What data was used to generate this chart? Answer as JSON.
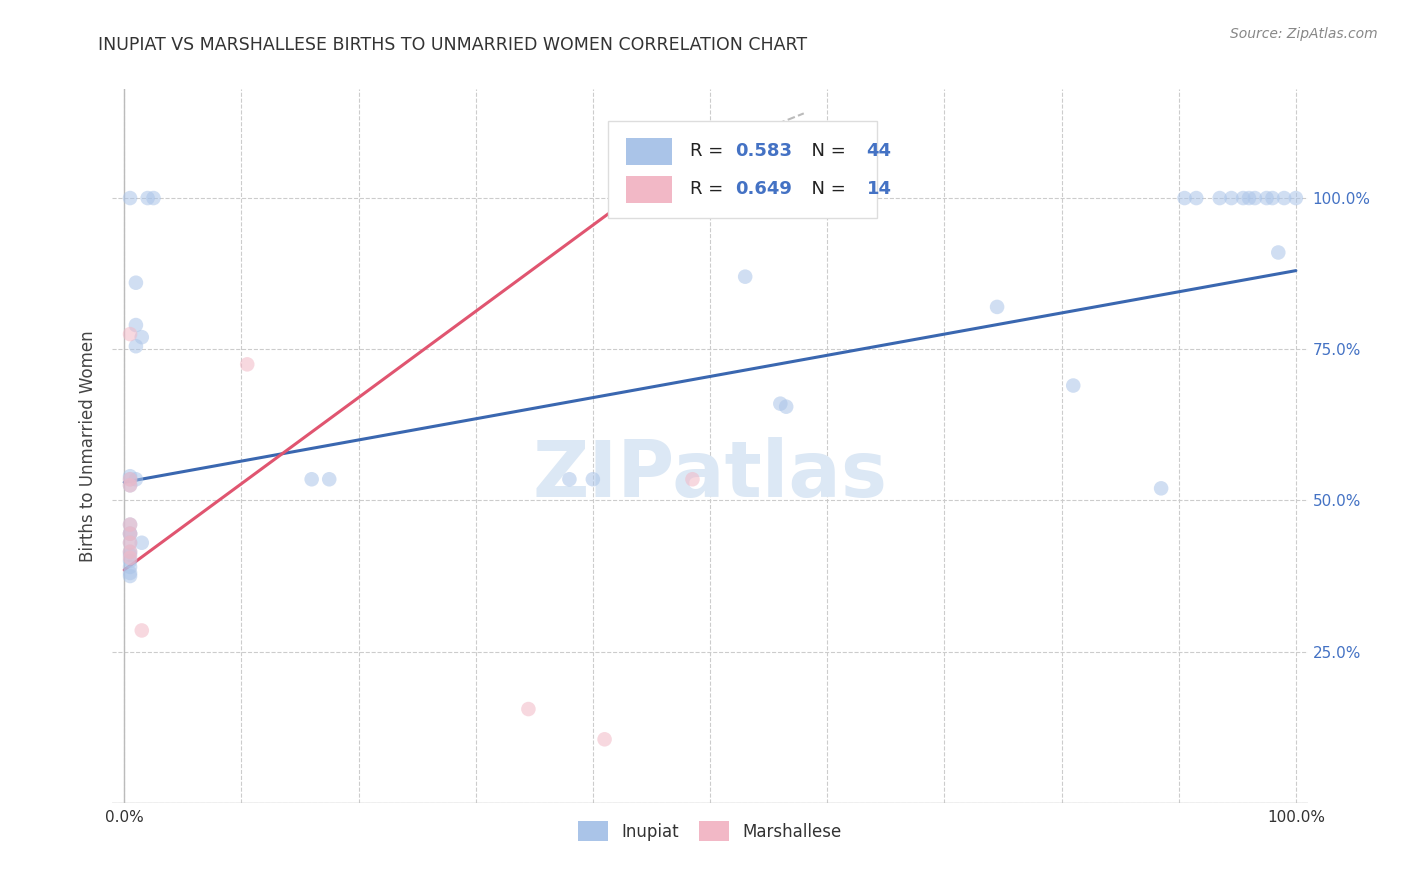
{
  "title": "INUPIAT VS MARSHALLESE BIRTHS TO UNMARRIED WOMEN CORRELATION CHART",
  "source": "Source: ZipAtlas.com",
  "ylabel": "Births to Unmarried Women",
  "watermark": "ZIPatlas",
  "inupiat_scatter": [
    [
      0.005,
      1.0
    ],
    [
      0.02,
      1.0
    ],
    [
      0.025,
      1.0
    ],
    [
      0.01,
      0.86
    ],
    [
      0.01,
      0.79
    ],
    [
      0.015,
      0.77
    ],
    [
      0.01,
      0.755
    ],
    [
      0.005,
      0.54
    ],
    [
      0.01,
      0.535
    ],
    [
      0.005,
      0.535
    ],
    [
      0.005,
      0.525
    ],
    [
      0.005,
      0.46
    ],
    [
      0.005,
      0.445
    ],
    [
      0.005,
      0.445
    ],
    [
      0.005,
      0.43
    ],
    [
      0.005,
      0.415
    ],
    [
      0.005,
      0.41
    ],
    [
      0.005,
      0.4
    ],
    [
      0.005,
      0.39
    ],
    [
      0.005,
      0.38
    ],
    [
      0.005,
      0.375
    ],
    [
      0.015,
      0.43
    ],
    [
      0.16,
      0.535
    ],
    [
      0.175,
      0.535
    ],
    [
      0.38,
      0.535
    ],
    [
      0.4,
      0.535
    ],
    [
      0.53,
      0.87
    ],
    [
      0.56,
      0.66
    ],
    [
      0.565,
      0.655
    ],
    [
      0.745,
      0.82
    ],
    [
      0.81,
      0.69
    ],
    [
      0.885,
      0.52
    ],
    [
      0.905,
      1.0
    ],
    [
      0.915,
      1.0
    ],
    [
      0.935,
      1.0
    ],
    [
      0.945,
      1.0
    ],
    [
      0.955,
      1.0
    ],
    [
      0.96,
      1.0
    ],
    [
      0.965,
      1.0
    ],
    [
      0.975,
      1.0
    ],
    [
      0.98,
      1.0
    ],
    [
      0.985,
      0.91
    ],
    [
      0.99,
      1.0
    ],
    [
      1.0,
      1.0
    ]
  ],
  "marshallese_scatter": [
    [
      0.005,
      0.775
    ],
    [
      0.005,
      0.535
    ],
    [
      0.005,
      0.525
    ],
    [
      0.005,
      0.46
    ],
    [
      0.005,
      0.445
    ],
    [
      0.005,
      0.43
    ],
    [
      0.005,
      0.415
    ],
    [
      0.005,
      0.405
    ],
    [
      0.015,
      0.285
    ],
    [
      0.105,
      0.725
    ],
    [
      0.345,
      0.155
    ],
    [
      0.41,
      0.105
    ],
    [
      0.47,
      1.055
    ],
    [
      0.485,
      0.535
    ]
  ],
  "blue_line": [
    [
      0.0,
      0.53
    ],
    [
      1.0,
      0.88
    ]
  ],
  "pink_line": [
    [
      0.0,
      0.385
    ],
    [
      0.47,
      1.055
    ]
  ],
  "pink_line_dashed": [
    [
      0.47,
      1.055
    ],
    [
      0.58,
      1.14
    ]
  ],
  "blue_color": "#aac4e8",
  "pink_color": "#f2b8c6",
  "blue_line_color": "#3a67b0",
  "pink_line_color": "#e05570",
  "background_color": "#ffffff",
  "grid_color": "#cccccc",
  "title_color": "#333333",
  "right_axis_color": "#4472c4",
  "watermark_color": "#dce8f5",
  "xlim": [
    -0.01,
    1.01
  ],
  "ylim": [
    0.0,
    1.18
  ],
  "xtick_positions": [
    0.0,
    0.1,
    0.2,
    0.3,
    0.4,
    0.5,
    0.6,
    0.7,
    0.8,
    0.9,
    1.0
  ],
  "xticklabels": [
    "0.0%",
    "",
    "",
    "",
    "",
    "",
    "",
    "",
    "",
    "",
    "100.0%"
  ],
  "ytick_positions": [
    0.0,
    0.25,
    0.5,
    0.75,
    1.0
  ],
  "ytick_labels_right": [
    "",
    "25.0%",
    "50.0%",
    "75.0%",
    "100.0%"
  ],
  "scatter_size": 110,
  "scatter_alpha": 0.55,
  "line_width": 2.2,
  "legend_r1": "R = 0.583",
  "legend_n1": "N = 44",
  "legend_r2": "R = 0.649",
  "legend_n2": "N = 14",
  "legend_label1": "Inupiat",
  "legend_label2": "Marshallese"
}
